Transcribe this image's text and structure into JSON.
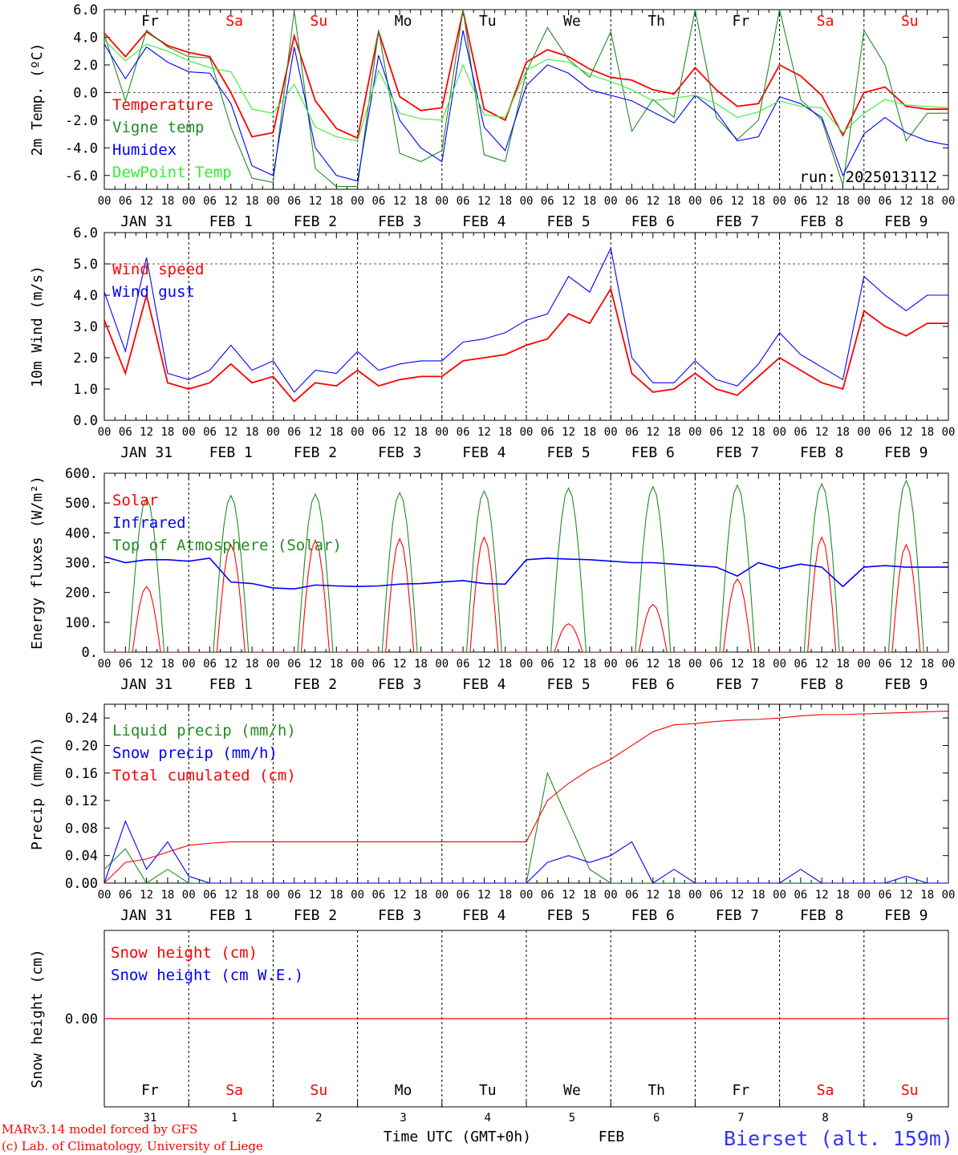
{
  "colors": {
    "red": "#ff0000",
    "green": "#228b22",
    "blue": "#0000ff",
    "lightgreen": "#33ee33",
    "weekend": "#ff0000",
    "weekday": "#000000",
    "station": "#3333ff"
  },
  "days": {
    "short": [
      "Fr",
      "Sa",
      "Su",
      "Mo",
      "Tu",
      "We",
      "Th",
      "Fr",
      "Sa",
      "Su"
    ],
    "weekend": [
      false,
      true,
      true,
      false,
      false,
      false,
      false,
      false,
      true,
      true
    ],
    "date_labels": [
      "JAN 31",
      "FEB  1",
      "FEB  2",
      "FEB  3",
      "FEB  4",
      "FEB  5",
      "FEB  6",
      "FEB  7",
      "FEB  8",
      "FEB  9"
    ],
    "day_numbers": [
      "31",
      "1",
      "2",
      "3",
      "4",
      "5",
      "6",
      "7",
      "8",
      "9"
    ],
    "hour_ticks": [
      "00",
      "06",
      "12",
      "18"
    ],
    "end_tick": "00"
  },
  "footer": {
    "model_line": "MARv3.14 model forced by GFS",
    "lab_line": "(c) Lab. of Climatology, University of Liege",
    "time_label": "Time UTC (GMT+0h)",
    "month": "FEB",
    "station": "Bierset (alt. 159m)"
  },
  "chart_data": [
    {
      "type": "line",
      "ylabel": "2m Temp. (ºC)",
      "ylim": [
        -7,
        6
      ],
      "yticks": [
        "6.0",
        "4.0",
        "2.0",
        "0.0",
        "-2.0",
        "-4.0",
        "-6.0"
      ],
      "ytick_values": [
        6,
        4,
        2,
        0,
        -2,
        -4,
        -6
      ],
      "reference_lines": [
        0
      ],
      "run_label": "run: 2025013112",
      "x_hours": [
        0,
        6,
        12,
        18,
        24,
        30,
        36,
        42,
        48,
        54,
        60,
        66,
        72,
        78,
        84,
        90,
        96,
        102,
        108,
        114,
        120,
        126,
        132,
        138,
        144,
        150,
        156,
        162,
        168,
        174,
        180,
        186,
        192,
        198,
        204,
        210,
        216,
        222,
        228,
        234,
        240
      ],
      "series": [
        {
          "name": "Temperature",
          "color": "red",
          "values": [
            4.3,
            2.6,
            4.4,
            3.4,
            2.9,
            2.6,
            0.0,
            -3.2,
            -2.9,
            4.1,
            -0.6,
            -2.6,
            -3.3,
            4.4,
            -0.3,
            -1.3,
            -1.1,
            5.9,
            -1.2,
            -2.0,
            2.2,
            3.1,
            2.6,
            1.7,
            1.1,
            0.9,
            0.2,
            -0.1,
            1.8,
            0.2,
            -1.0,
            -0.8,
            2.0,
            1.2,
            -0.2,
            -3.1,
            0.0,
            0.4,
            -1.0,
            -1.2,
            -1.2
          ]
        },
        {
          "name": "Vigne temp",
          "color": "green",
          "values": [
            4.2,
            -0.6,
            4.5,
            3.3,
            2.6,
            2.5,
            -2.5,
            -6.2,
            -6.5,
            5.9,
            -5.5,
            -6.8,
            -6.8,
            4.5,
            -4.4,
            -5.0,
            -4.2,
            6.0,
            -4.5,
            -5.0,
            1.5,
            4.7,
            2.4,
            1.1,
            4.4,
            -2.8,
            -0.5,
            -1.8,
            6.0,
            -1.8,
            -3.4,
            -2.0,
            6.0,
            -0.5,
            -2.0,
            -6.7,
            4.5,
            2.0,
            -3.5,
            -1.5,
            -1.5
          ]
        },
        {
          "name": "Humidex",
          "color": "blue",
          "values": [
            3.5,
            1.0,
            3.3,
            2.2,
            1.5,
            1.4,
            -0.8,
            -5.3,
            -6.0,
            3.3,
            -4.0,
            -6.0,
            -6.4,
            2.7,
            -2.0,
            -4.0,
            -5.0,
            4.5,
            -2.5,
            -4.2,
            0.5,
            2.0,
            1.4,
            0.2,
            -0.2,
            -0.6,
            -1.4,
            -2.2,
            -0.2,
            -1.4,
            -3.5,
            -3.2,
            -0.3,
            -0.8,
            -1.8,
            -6.0,
            -3.0,
            -1.8,
            -2.9,
            -3.5,
            -3.8
          ]
        },
        {
          "name": "DewPoint Temp",
          "color": "lightgreen",
          "values": [
            3.8,
            2.3,
            3.5,
            3.0,
            2.3,
            1.8,
            1.5,
            -1.2,
            -1.5,
            0.6,
            -2.5,
            -3.2,
            -3.5,
            1.6,
            -1.5,
            -1.9,
            -2.0,
            2.0,
            -1.6,
            -1.8,
            1.6,
            2.4,
            2.2,
            1.3,
            0.8,
            0.2,
            -0.6,
            -0.4,
            -0.2,
            -0.8,
            -1.8,
            -1.4,
            -0.6,
            -1.0,
            -1.1,
            -2.9,
            -1.5,
            -0.5,
            -0.9,
            -1.0,
            -1.1
          ]
        }
      ]
    },
    {
      "type": "line",
      "ylabel": "10m Wind (m/s)",
      "ylim": [
        0,
        6
      ],
      "yticks": [
        "6.0",
        "5.0",
        "4.0",
        "3.0",
        "2.0",
        "1.0",
        "0.0"
      ],
      "ytick_values": [
        6,
        5,
        4,
        3,
        2,
        1,
        0
      ],
      "reference_lines": [
        5
      ],
      "x_hours": [
        0,
        6,
        12,
        18,
        24,
        30,
        36,
        42,
        48,
        54,
        60,
        66,
        72,
        78,
        84,
        90,
        96,
        102,
        108,
        114,
        120,
        126,
        132,
        138,
        144,
        150,
        156,
        162,
        168,
        174,
        180,
        186,
        192,
        198,
        204,
        210,
        216,
        222,
        228,
        234,
        240
      ],
      "series": [
        {
          "name": "Wind speed",
          "color": "red",
          "values": [
            3.2,
            1.5,
            4.0,
            1.2,
            1.0,
            1.2,
            1.8,
            1.2,
            1.4,
            0.6,
            1.2,
            1.1,
            1.6,
            1.1,
            1.3,
            1.4,
            1.4,
            1.9,
            2.0,
            2.1,
            2.4,
            2.6,
            3.4,
            3.1,
            4.2,
            1.5,
            0.9,
            1.0,
            1.5,
            1.0,
            0.8,
            1.4,
            2.0,
            1.6,
            1.2,
            1.0,
            3.5,
            3.0,
            2.7,
            3.1,
            3.1
          ]
        },
        {
          "name": "Wind gust",
          "color": "blue",
          "values": [
            4.1,
            2.2,
            5.2,
            1.5,
            1.3,
            1.6,
            2.4,
            1.6,
            1.9,
            0.9,
            1.6,
            1.5,
            2.2,
            1.6,
            1.8,
            1.9,
            1.9,
            2.5,
            2.6,
            2.8,
            3.2,
            3.4,
            4.6,
            4.1,
            5.5,
            2.0,
            1.2,
            1.2,
            1.9,
            1.3,
            1.1,
            1.8,
            2.8,
            2.1,
            1.7,
            1.3,
            4.6,
            4.0,
            3.5,
            4.0,
            4.0
          ]
        }
      ]
    },
    {
      "type": "line",
      "ylabel": "Energy fluxes (W/m²)",
      "ylim": [
        0,
        600
      ],
      "yticks": [
        "600.",
        "500.",
        "400.",
        "300.",
        "200.",
        "100.",
        "0."
      ],
      "ytick_values": [
        600,
        500,
        400,
        300,
        200,
        100,
        0
      ],
      "daytime_peaks": {
        "Solar": [
          220,
          360,
          375,
          380,
          385,
          95,
          160,
          245,
          385,
          360
        ],
        "Top of Atmosphere (Solar)": [
          515,
          525,
          530,
          535,
          540,
          550,
          555,
          560,
          565,
          575
        ]
      },
      "infrared_x_hours": [
        0,
        6,
        12,
        18,
        24,
        30,
        36,
        42,
        48,
        54,
        60,
        66,
        72,
        78,
        84,
        90,
        96,
        102,
        108,
        114,
        120,
        126,
        132,
        138,
        144,
        150,
        156,
        162,
        168,
        174,
        180,
        186,
        192,
        198,
        204,
        210,
        216,
        222,
        228,
        234,
        240
      ],
      "series": [
        {
          "name": "Solar",
          "color": "red"
        },
        {
          "name": "Infrared",
          "color": "blue",
          "values": [
            320,
            300,
            310,
            310,
            305,
            315,
            235,
            230,
            215,
            212,
            225,
            222,
            220,
            222,
            228,
            230,
            235,
            240,
            230,
            228,
            310,
            315,
            312,
            310,
            305,
            300,
            300,
            295,
            290,
            285,
            255,
            300,
            280,
            295,
            285,
            220,
            285,
            290,
            285,
            285,
            285
          ]
        },
        {
          "name": "Top of Atmosphere (Solar)",
          "color": "green"
        }
      ]
    },
    {
      "type": "line",
      "ylabel": "Precip (mm/h)",
      "ylim": [
        0,
        0.26
      ],
      "yticks": [
        "0.24",
        "0.20",
        "0.16",
        "0.12",
        "0.08",
        "0.04",
        "0.00"
      ],
      "ytick_values": [
        0.24,
        0.2,
        0.16,
        0.12,
        0.08,
        0.04,
        0.0
      ],
      "x_hours": [
        0,
        6,
        12,
        18,
        24,
        30,
        36,
        42,
        48,
        54,
        60,
        66,
        72,
        78,
        84,
        90,
        96,
        102,
        108,
        114,
        120,
        126,
        132,
        138,
        144,
        150,
        156,
        162,
        168,
        174,
        180,
        186,
        192,
        198,
        204,
        210,
        216,
        222,
        228,
        234,
        240
      ],
      "series": [
        {
          "name": "Liquid precip (mm/h)",
          "color": "green",
          "values": [
            0.02,
            0.05,
            0.0,
            0.02,
            0.0,
            0.0,
            0.0,
            0.0,
            0.0,
            0.0,
            0.0,
            0.0,
            0.0,
            0.0,
            0.0,
            0.0,
            0.0,
            0.0,
            0.0,
            0.0,
            0.0,
            0.16,
            0.09,
            0.02,
            0.0,
            0.0,
            0.0,
            0.0,
            0.0,
            0.0,
            0.0,
            0.0,
            0.0,
            0.0,
            0.0,
            0.0,
            0.0,
            0.0,
            0.0,
            0.0,
            0.0
          ]
        },
        {
          "name": "Snow precip (mm/h)",
          "color": "blue",
          "values": [
            0.0,
            0.09,
            0.02,
            0.06,
            0.01,
            0.0,
            0.0,
            0.0,
            0.0,
            0.0,
            0.0,
            0.0,
            0.0,
            0.0,
            0.0,
            0.0,
            0.0,
            0.0,
            0.0,
            0.0,
            0.0,
            0.03,
            0.04,
            0.03,
            0.04,
            0.06,
            0.0,
            0.02,
            0.0,
            0.0,
            0.0,
            0.0,
            0.0,
            0.02,
            0.0,
            0.0,
            0.0,
            0.0,
            0.01,
            0.0,
            0.0
          ]
        },
        {
          "name": "Total cumulated (cm)",
          "color": "red",
          "values": [
            0.0,
            0.03,
            0.035,
            0.045,
            0.055,
            0.058,
            0.06,
            0.06,
            0.06,
            0.06,
            0.06,
            0.06,
            0.06,
            0.06,
            0.06,
            0.06,
            0.06,
            0.06,
            0.06,
            0.06,
            0.06,
            0.12,
            0.145,
            0.165,
            0.18,
            0.2,
            0.22,
            0.23,
            0.232,
            0.235,
            0.237,
            0.238,
            0.24,
            0.243,
            0.245,
            0.245,
            0.246,
            0.247,
            0.248,
            0.249,
            0.25
          ]
        }
      ]
    },
    {
      "type": "line",
      "ylabel": "Snow height (cm)",
      "yticks": [
        "0.00"
      ],
      "ytick_values": [
        0
      ],
      "series": [
        {
          "name": "Snow height (cm)",
          "color": "red",
          "values": [
            0.0,
            0.0
          ]
        },
        {
          "name": "Snow height (cm W.E.)",
          "color": "blue"
        }
      ]
    }
  ]
}
